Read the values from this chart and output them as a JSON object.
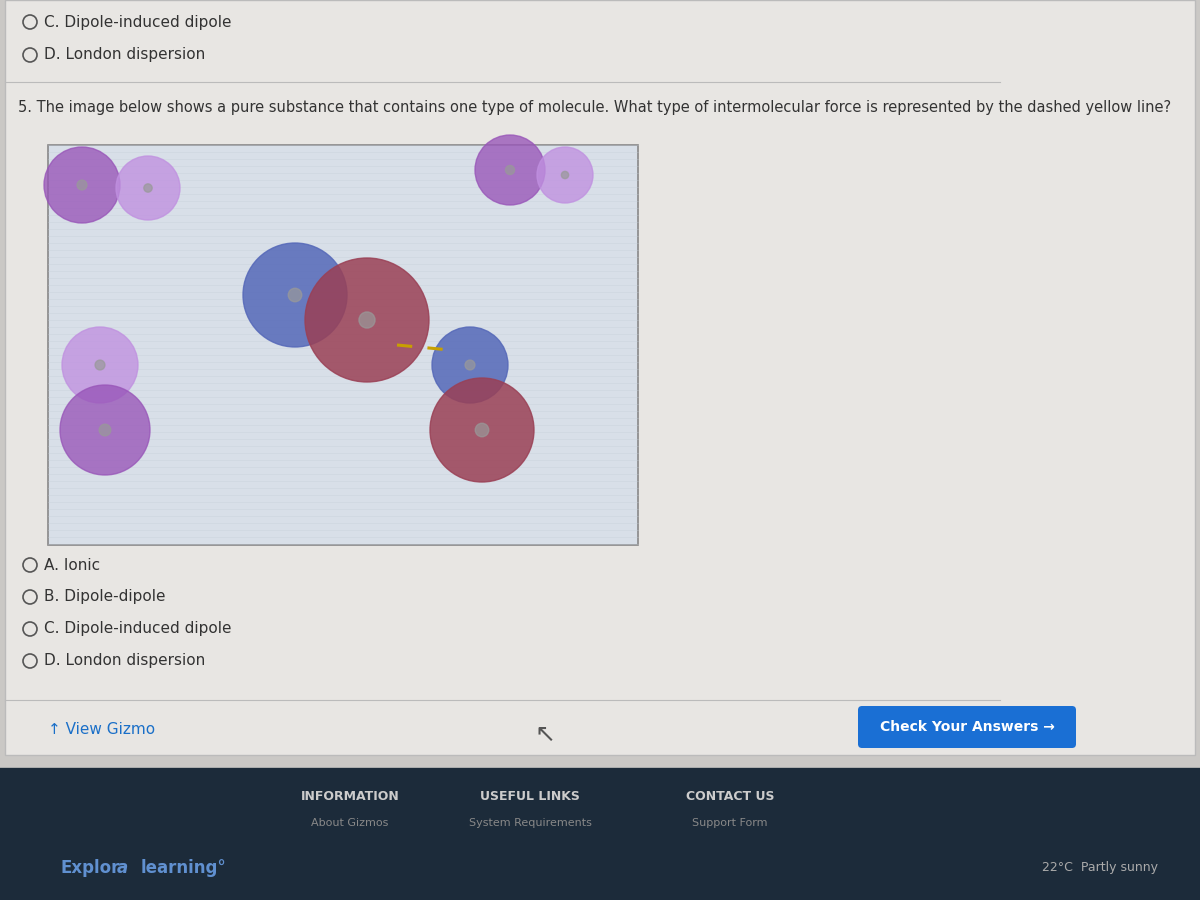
{
  "bg_color": "#cac8c5",
  "panel_bg": "#e8e6e3",
  "panel_border": "#bbbbbb",
  "question_text": "5. The image below shows a pure substance that contains one type of molecule. What type of intermolecular force is represented by the dashed yellow line?",
  "options_top": [
    "C. Dipole-induced dipole",
    "D. London dispersion"
  ],
  "options_bottom": [
    "A. Ionic",
    "B. Dipole-dipole",
    "C. Dipole-induced dipole",
    "D. London dispersion"
  ],
  "check_btn_color": "#1a6fd4",
  "check_btn_text": "Check Your Answers →",
  "view_gizmo_text": "↑ View Gizmo",
  "footer_bg": "#1c2b3a",
  "footer_items": [
    "INFORMATION",
    "USEFUL LINKS",
    "CONTACT US"
  ],
  "footer_sub": [
    "About Gizmos",
    "System Requirements",
    "Support Form"
  ],
  "brand_text": "Explor",
  "brand_italic": "a",
  "brand_suffix": "learning°",
  "weather_text": "22°C  Partly sunny",
  "mol_purple": "#9855b8",
  "mol_light_purple": "#c090e0",
  "mol_red": "#9a4055",
  "mol_blue": "#5568b8",
  "mol_purple2": "#b070cc",
  "dashed_line_color": "#c8a000",
  "box_bg": "#d8dfe8",
  "box_stripe": "#c5cdd8",
  "text_color": "#333333",
  "radio_color": "#555555"
}
